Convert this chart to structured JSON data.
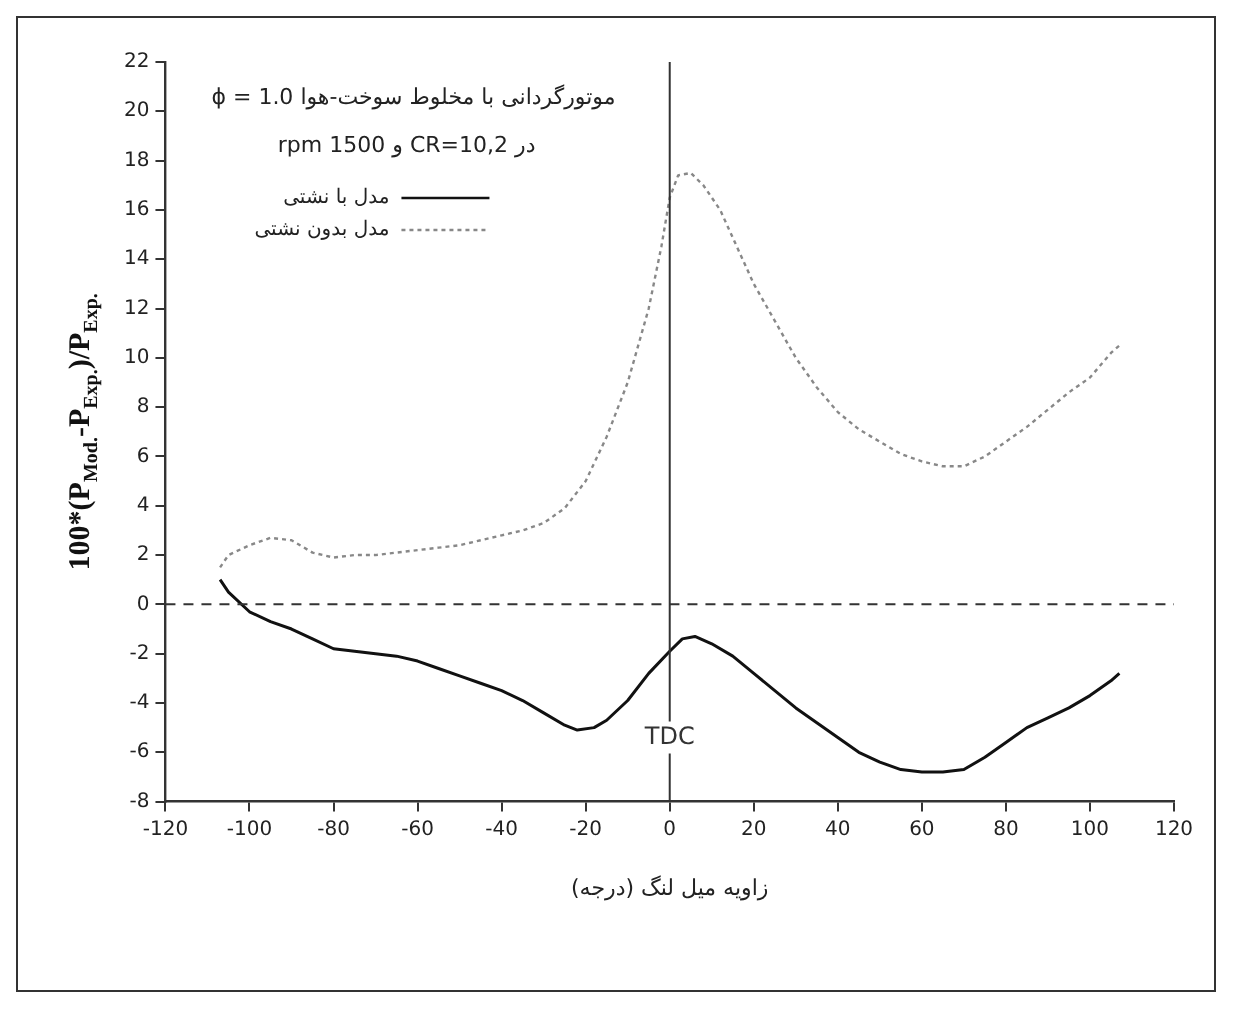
{
  "chart_data": {
    "type": "line",
    "title": "موتورگردانی با مخلوط سوخت-هوا ϕ = 1.0",
    "subtitle": "در CR=10,2 و 1500 rpm",
    "xlabel": "زاویه میل لنگ (درجه)",
    "ylabel": "100*(P$_{Mod.}$-P$_{Exp.}$)/P$_{Exp.}$",
    "annotations": [
      {
        "text": "TDC",
        "x": 0,
        "y": -5.4
      }
    ],
    "series": [
      {
        "name": "مدل با نشتی",
        "color": "#111111",
        "line_style": "solid",
        "x": [
          -107,
          -105,
          -100,
          -95,
          -90,
          -85,
          -80,
          -75,
          -70,
          -65,
          -60,
          -55,
          -50,
          -45,
          -40,
          -35,
          -30,
          -25,
          -22,
          -18,
          -15,
          -10,
          -5,
          0,
          3,
          6,
          10,
          15,
          20,
          25,
          30,
          35,
          40,
          45,
          50,
          55,
          60,
          65,
          70,
          75,
          80,
          85,
          90,
          95,
          100,
          105,
          107
        ],
        "values": [
          1.0,
          0.5,
          -0.3,
          -0.7,
          -1.0,
          -1.4,
          -1.8,
          -1.9,
          -2.0,
          -2.1,
          -2.3,
          -2.6,
          -2.9,
          -3.2,
          -3.5,
          -3.9,
          -4.4,
          -4.9,
          -5.1,
          -5.0,
          -4.7,
          -3.9,
          -2.8,
          -1.9,
          -1.4,
          -1.3,
          -1.6,
          -2.1,
          -2.8,
          -3.5,
          -4.2,
          -4.8,
          -5.4,
          -6.0,
          -6.4,
          -6.7,
          -6.8,
          -6.8,
          -6.7,
          -6.2,
          -5.6,
          -5.0,
          -4.6,
          -4.2,
          -3.7,
          -3.1,
          -2.8
        ]
      },
      {
        "name": "مدل بدون نشتی",
        "color": "#888888",
        "line_style": "dotted",
        "x": [
          -107,
          -105,
          -100,
          -95,
          -90,
          -85,
          -80,
          -75,
          -70,
          -65,
          -60,
          -55,
          -50,
          -45,
          -40,
          -35,
          -30,
          -25,
          -20,
          -15,
          -10,
          -5,
          -2,
          0,
          2,
          5,
          8,
          12,
          16,
          20,
          25,
          30,
          35,
          40,
          45,
          50,
          55,
          60,
          65,
          70,
          75,
          80,
          85,
          90,
          95,
          100,
          105,
          107
        ],
        "values": [
          1.5,
          2.0,
          2.4,
          2.7,
          2.6,
          2.1,
          1.9,
          2.0,
          2.0,
          2.1,
          2.2,
          2.3,
          2.4,
          2.6,
          2.8,
          3.0,
          3.3,
          3.9,
          5.0,
          6.8,
          9.0,
          12.0,
          14.5,
          16.5,
          17.4,
          17.5,
          17.0,
          16.0,
          14.5,
          13.0,
          11.5,
          10.0,
          8.8,
          7.8,
          7.1,
          6.6,
          6.1,
          5.8,
          5.6,
          5.6,
          6.0,
          6.6,
          7.2,
          7.9,
          8.6,
          9.2,
          10.2,
          10.5
        ]
      }
    ],
    "xlim": [
      -120,
      120
    ],
    "xticks": [
      -120,
      -100,
      -80,
      -60,
      -40,
      -20,
      0,
      20,
      40,
      60,
      80,
      100,
      120
    ],
    "ylim": [
      -8,
      22
    ],
    "yticks": [
      -8,
      -6,
      -4,
      -2,
      0,
      2,
      4,
      6,
      8,
      10,
      12,
      14,
      16,
      18,
      20,
      22
    ],
    "ref_lines": [
      {
        "axis": "y",
        "value": 0,
        "line_style": "dashed",
        "color": "#333333"
      },
      {
        "axis": "x",
        "value": 0,
        "line_style": "solid",
        "color": "#333333"
      }
    ],
    "grid": false,
    "legend": "top left",
    "marker": "none"
  }
}
